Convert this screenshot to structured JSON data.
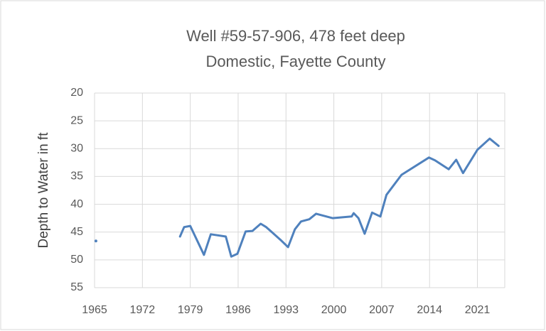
{
  "chart_data": {
    "type": "line",
    "title": "Well #59-57-906, 478 feet deep",
    "subtitle": "Domestic, Fayette County",
    "y_label": "Depth to Water in ft",
    "x": [
      1965.2,
      null,
      1977.5,
      1978.1,
      1979.0,
      1981.0,
      1982.0,
      1984.2,
      1985.0,
      1985.9,
      1987.1,
      1988.1,
      1989.3,
      1990.1,
      1991.2,
      1992.2,
      1993.3,
      1994.3,
      1995.2,
      1996.4,
      1997.4,
      1999.8,
      2002.6,
      2002.9,
      2003.6,
      2004.5,
      2005.6,
      2006.8,
      2007.7,
      2009.9,
      2013.9,
      2014.8,
      2016.8,
      2017.9,
      2018.9,
      2021.0,
      2022.8,
      2024.1
    ],
    "series": [
      {
        "name": "Depth to Water",
        "color": "#4f81bd",
        "values": [
          46.6,
          null,
          45.8,
          44.1,
          43.9,
          49.1,
          45.4,
          45.8,
          49.4,
          48.9,
          44.9,
          44.8,
          43.5,
          44.1,
          45.3,
          46.4,
          47.7,
          44.5,
          43.1,
          42.7,
          41.7,
          42.5,
          42.2,
          41.6,
          42.5,
          45.3,
          41.5,
          42.2,
          38.3,
          34.7,
          31.6,
          32.1,
          33.7,
          32.0,
          34.4,
          30.2,
          28.2,
          29.5
        ]
      }
    ],
    "xlim": [
      1965,
      2025
    ],
    "xticks": [
      1965,
      1972,
      1979,
      1986,
      1993,
      2000,
      2007,
      2014,
      2021
    ],
    "ylim": [
      20,
      55
    ],
    "yticks": [
      20,
      25,
      30,
      35,
      40,
      45,
      50,
      55
    ],
    "y_inverted": true,
    "grid": true
  }
}
